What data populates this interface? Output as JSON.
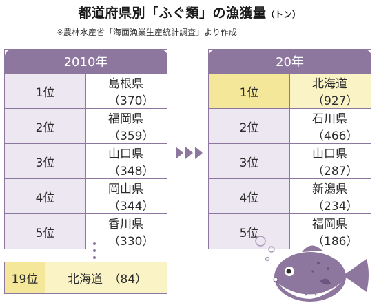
{
  "title": {
    "main": "都道府県別「ふぐ類」の漁獲量",
    "unit": "（トン）"
  },
  "source": "※農林水産省「海面漁業生産統計調査」より作成",
  "left_table": {
    "header": "2010年",
    "rows": [
      {
        "rank": "1位",
        "pref": "島根県（370）"
      },
      {
        "rank": "2位",
        "pref": "福岡県（359）"
      },
      {
        "rank": "3位",
        "pref": "山口県（348）"
      },
      {
        "rank": "4位",
        "pref": "岡山県（344）"
      },
      {
        "rank": "5位",
        "pref": "香川県（330）"
      }
    ],
    "extra_row": {
      "rank": "19位",
      "pref": "北海道　（84）"
    }
  },
  "right_table": {
    "header": "20年",
    "rows": [
      {
        "rank": "1位",
        "pref": "北海道（927）"
      },
      {
        "rank": "2位",
        "pref": "石川県（466）"
      },
      {
        "rank": "3位",
        "pref": "山口県（287）"
      },
      {
        "rank": "4位",
        "pref": "新潟県（234）"
      },
      {
        "rank": "5位",
        "pref": "福岡県（186）"
      }
    ]
  },
  "colors": {
    "accent_purple": "#8e779e",
    "rank_cell_bg": "#ece7f1",
    "highlight_rank_bg": "#f4e79a",
    "highlight_cell_bg": "#faf3c6"
  },
  "icons": {
    "arrows": "triple-right-arrow-icon",
    "fish": "pufferfish-illustration"
  }
}
